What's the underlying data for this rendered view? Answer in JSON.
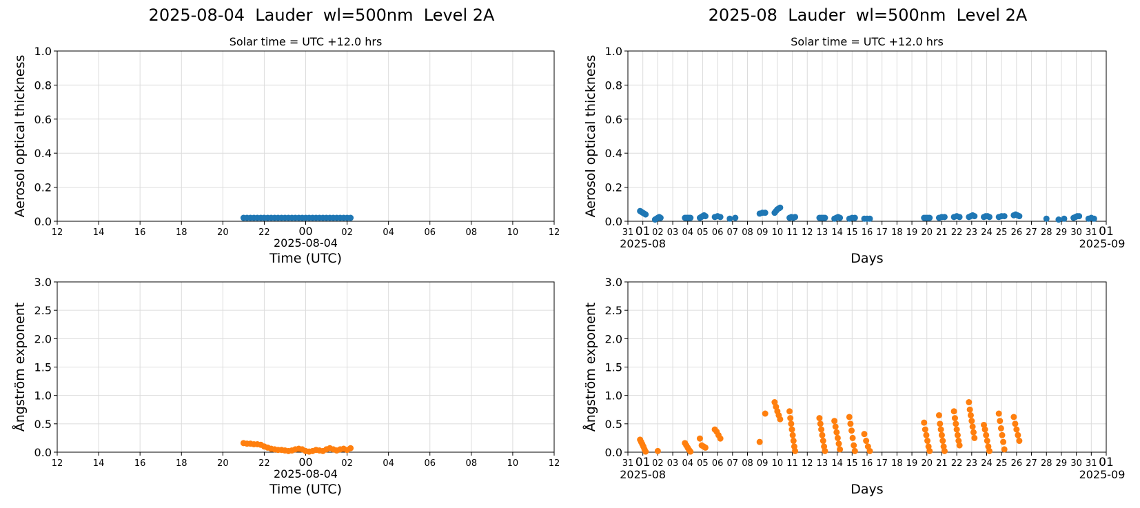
{
  "figure": {
    "left_title": "2025-08-04  Lauder  wl=500nm  Level 2A",
    "right_title": "2025-08  Lauder  wl=500nm  Level 2A",
    "subtitle": "Solar time = UTC +12.0 hrs"
  },
  "colors": {
    "aod": "#1f77b4",
    "angstrom": "#ff7f0e",
    "grid": "#dcdcdc"
  },
  "chart_data": [
    {
      "type": "scatter",
      "name": "daily-aod",
      "title": "2025-08-04  Lauder  wl=500nm  Level 2A",
      "subtitle": "Solar time = UTC +12.0 hrs",
      "ylabel": "Aerosol optical thickness",
      "xlabel": "Time (UTC)",
      "x_sublabel": "2025-08-04",
      "xlim": [
        "2025-08-03 12:00",
        "2025-08-04 12:00"
      ],
      "ylim": [
        0,
        1.0
      ],
      "yticks": [
        "0.0",
        "0.2",
        "0.4",
        "0.6",
        "0.8",
        "1.0"
      ],
      "xticks": [
        "12",
        "14",
        "16",
        "18",
        "20",
        "22",
        "00",
        "02",
        "04",
        "06",
        "08",
        "10",
        "12"
      ],
      "grid": true,
      "series": [
        {
          "x_start": "2025-08-03 21:00",
          "x_end": "2025-08-04 02:10",
          "step_minutes": 10,
          "y": [
            0.02,
            0.02,
            0.02,
            0.02,
            0.02,
            0.02,
            0.02,
            0.02,
            0.02,
            0.02,
            0.02,
            0.02,
            0.02,
            0.02,
            0.02,
            0.02,
            0.02,
            0.02,
            0.02,
            0.02,
            0.02,
            0.02,
            0.02,
            0.02,
            0.02,
            0.02,
            0.02,
            0.02,
            0.02,
            0.02,
            0.02,
            0.02
          ]
        }
      ]
    },
    {
      "type": "scatter",
      "name": "monthly-aod",
      "title": "2025-08  Lauder  wl=500nm  Level 2A",
      "subtitle": "Solar time = UTC +12.0 hrs",
      "ylabel": "Aerosol optical thickness",
      "xlabel": "Days",
      "x_start_label": "2025-08",
      "x_end_label": "2025-09",
      "xlim": [
        "2025-07-31",
        "2025-09-01"
      ],
      "ylim": [
        0,
        1.0
      ],
      "yticks": [
        "0.0",
        "0.2",
        "0.4",
        "0.6",
        "0.8",
        "1.0"
      ],
      "xticks": [
        "31",
        "01",
        "02",
        "03",
        "04",
        "05",
        "06",
        "07",
        "08",
        "09",
        "10",
        "11",
        "12",
        "13",
        "14",
        "15",
        "16",
        "17",
        "18",
        "19",
        "20",
        "21",
        "22",
        "23",
        "24",
        "25",
        "26",
        "27",
        "28",
        "29",
        "30",
        "31",
        "01"
      ],
      "grid": true,
      "series": [
        {
          "points": [
            {
              "day": 1,
              "y": [
                0.06,
                0.055,
                0.05,
                0.045,
                0.04
              ]
            },
            {
              "day": 2,
              "y": [
                0.01,
                0.015,
                0.02,
                0.025,
                0.02
              ]
            },
            {
              "day": 4,
              "y": [
                0.02,
                0.02,
                0.02,
                0.02,
                0.02
              ]
            },
            {
              "day": 5,
              "y": [
                0.02,
                0.025,
                0.03,
                0.035,
                0.03
              ]
            },
            {
              "day": 6,
              "y": [
                0.025,
                0.03,
                0.025
              ]
            },
            {
              "day": 7,
              "y": [
                0.015,
                0.02
              ]
            },
            {
              "day": 9,
              "y": [
                0.045,
                0.05,
                0.05
              ]
            },
            {
              "day": 10,
              "y": [
                0.05,
                0.06,
                0.07,
                0.075,
                0.08
              ]
            },
            {
              "day": 11,
              "y": [
                0.02,
                0.025,
                0.02,
                0.025
              ]
            },
            {
              "day": 13,
              "y": [
                0.02,
                0.02,
                0.02,
                0.02
              ]
            },
            {
              "day": 14,
              "y": [
                0.015,
                0.02,
                0.025,
                0.02
              ]
            },
            {
              "day": 15,
              "y": [
                0.015,
                0.02,
                0.02
              ]
            },
            {
              "day": 16,
              "y": [
                0.015,
                0.015,
                0.015
              ]
            },
            {
              "day": 20,
              "y": [
                0.02,
                0.02,
                0.02,
                0.02
              ]
            },
            {
              "day": 21,
              "y": [
                0.02,
                0.025,
                0.025
              ]
            },
            {
              "day": 22,
              "y": [
                0.025,
                0.03,
                0.025
              ]
            },
            {
              "day": 23,
              "y": [
                0.025,
                0.03,
                0.035,
                0.03
              ]
            },
            {
              "day": 24,
              "y": [
                0.025,
                0.03,
                0.03,
                0.025
              ]
            },
            {
              "day": 25,
              "y": [
                0.025,
                0.03,
                0.03
              ]
            },
            {
              "day": 26,
              "y": [
                0.035,
                0.04,
                0.035,
                0.03
              ]
            },
            {
              "day": 28,
              "y": [
                0.015
              ]
            },
            {
              "day": 29,
              "y": [
                0.01,
                0.015
              ]
            },
            {
              "day": 30,
              "y": [
                0.02,
                0.025,
                0.03,
                0.03
              ]
            },
            {
              "day": 31,
              "y": [
                0.015,
                0.02,
                0.015
              ]
            }
          ]
        }
      ]
    },
    {
      "type": "scatter",
      "name": "daily-angstrom",
      "ylabel": "Ångström exponent",
      "xlabel": "Time (UTC)",
      "x_sublabel": "2025-08-04",
      "xlim": [
        "2025-08-03 12:00",
        "2025-08-04 12:00"
      ],
      "ylim": [
        0,
        3.0
      ],
      "yticks": [
        "0.0",
        "0.5",
        "1.0",
        "1.5",
        "2.0",
        "2.5",
        "3.0"
      ],
      "xticks": [
        "12",
        "14",
        "16",
        "18",
        "20",
        "22",
        "00",
        "02",
        "04",
        "06",
        "08",
        "10",
        "12"
      ],
      "grid": true,
      "series": [
        {
          "x_start": "2025-08-03 21:00",
          "x_end": "2025-08-04 02:10",
          "step_minutes": 10,
          "y": [
            0.16,
            0.15,
            0.15,
            0.14,
            0.14,
            0.13,
            0.1,
            0.08,
            0.06,
            0.05,
            0.04,
            0.04,
            0.03,
            0.02,
            0.03,
            0.05,
            0.06,
            0.05,
            0.02,
            0.01,
            0.02,
            0.04,
            0.03,
            0.02,
            0.05,
            0.07,
            0.05,
            0.03,
            0.05,
            0.06,
            0.04,
            0.07
          ]
        }
      ]
    },
    {
      "type": "scatter",
      "name": "monthly-angstrom",
      "ylabel": "Ångström exponent",
      "xlabel": "Days",
      "x_start_label": "2025-08",
      "x_end_label": "2025-09",
      "xlim": [
        "2025-07-31",
        "2025-09-01"
      ],
      "ylim": [
        0,
        3.0
      ],
      "yticks": [
        "0.0",
        "0.5",
        "1.0",
        "1.5",
        "2.0",
        "2.5",
        "3.0"
      ],
      "xticks": [
        "31",
        "01",
        "02",
        "03",
        "04",
        "05",
        "06",
        "07",
        "08",
        "09",
        "10",
        "11",
        "12",
        "13",
        "14",
        "15",
        "16",
        "17",
        "18",
        "19",
        "20",
        "21",
        "22",
        "23",
        "24",
        "25",
        "26",
        "27",
        "28",
        "29",
        "30",
        "31",
        "01"
      ],
      "grid": true,
      "series": [
        {
          "points": [
            {
              "day": 1,
              "y": [
                0.22,
                0.18,
                0.14,
                0.1,
                0.05,
                0.01
              ]
            },
            {
              "day": 2,
              "y": [
                0.02
              ]
            },
            {
              "day": 4,
              "y": [
                0.16,
                0.12,
                0.08,
                0.04,
                0.01
              ]
            },
            {
              "day": 5,
              "y": [
                0.24,
                0.12,
                0.1,
                0.08
              ]
            },
            {
              "day": 6,
              "y": [
                0.4,
                0.36,
                0.3,
                0.24
              ]
            },
            {
              "day": 9,
              "y": [
                0.18,
                0.68
              ]
            },
            {
              "day": 10,
              "y": [
                0.88,
                0.8,
                0.72,
                0.65,
                0.58
              ]
            },
            {
              "day": 11,
              "y": [
                0.72,
                0.6,
                0.5,
                0.4,
                0.3,
                0.2,
                0.1,
                0.02
              ]
            },
            {
              "day": 13,
              "y": [
                0.6,
                0.5,
                0.4,
                0.3,
                0.2,
                0.1,
                0.02
              ]
            },
            {
              "day": 14,
              "y": [
                0.55,
                0.45,
                0.35,
                0.25,
                0.15,
                0.05
              ]
            },
            {
              "day": 15,
              "y": [
                0.62,
                0.5,
                0.38,
                0.25,
                0.12,
                0.02
              ]
            },
            {
              "day": 16,
              "y": [
                0.32,
                0.2,
                0.1,
                0.02
              ]
            },
            {
              "day": 20,
              "y": [
                0.52,
                0.4,
                0.3,
                0.2,
                0.1,
                0.02
              ]
            },
            {
              "day": 21,
              "y": [
                0.65,
                0.5,
                0.4,
                0.3,
                0.2,
                0.1,
                0.02
              ]
            },
            {
              "day": 22,
              "y": [
                0.72,
                0.6,
                0.5,
                0.4,
                0.3,
                0.2,
                0.12
              ]
            },
            {
              "day": 23,
              "y": [
                0.88,
                0.75,
                0.65,
                0.55,
                0.45,
                0.35,
                0.25
              ]
            },
            {
              "day": 24,
              "y": [
                0.48,
                0.4,
                0.3,
                0.2,
                0.1,
                0.02
              ]
            },
            {
              "day": 25,
              "y": [
                0.68,
                0.55,
                0.42,
                0.3,
                0.18,
                0.05
              ]
            },
            {
              "day": 26,
              "y": [
                0.62,
                0.5,
                0.4,
                0.3,
                0.2
              ]
            }
          ]
        }
      ]
    }
  ]
}
